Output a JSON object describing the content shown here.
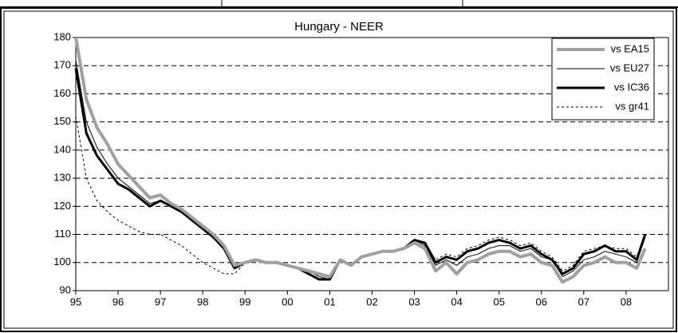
{
  "chart_data": {
    "type": "line",
    "title": "Hungary - NEER",
    "x": [
      1995,
      1995.25,
      1995.5,
      1995.75,
      1996,
      1996.25,
      1996.5,
      1996.75,
      1997,
      1997.25,
      1997.5,
      1997.75,
      1998,
      1998.25,
      1998.5,
      1998.75,
      1999,
      1999.25,
      1999.5,
      1999.75,
      2000,
      2000.25,
      2000.5,
      2000.75,
      2001,
      2001.25,
      2001.5,
      2001.75,
      2002,
      2002.25,
      2002.5,
      2002.75,
      2003,
      2003.25,
      2003.5,
      2003.75,
      2004,
      2004.25,
      2004.5,
      2004.75,
      2005,
      2005.25,
      2005.5,
      2005.75,
      2006,
      2006.25,
      2006.5,
      2006.75,
      2007,
      2007.25,
      2007.5,
      2007.75,
      2008,
      2008.25,
      2008.45
    ],
    "series": [
      {
        "name": "vs EA15",
        "color": "#a0a0a0",
        "width": 4,
        "dashed": false,
        "values": [
          180,
          158,
          148,
          142,
          135,
          131,
          127,
          123,
          124,
          121,
          119,
          116,
          113,
          110,
          106,
          99,
          100,
          101,
          100,
          100,
          99,
          98,
          97,
          96,
          95,
          101,
          99,
          102,
          103,
          104,
          104,
          105,
          107,
          105,
          97,
          100,
          96,
          100,
          101,
          103,
          104,
          104,
          102,
          103,
          100,
          99,
          93,
          95,
          99,
          100,
          102,
          100,
          100,
          98,
          105
        ]
      },
      {
        "name": "vs EU27",
        "color": "#000000",
        "width": 1,
        "dashed": false,
        "values": [
          172,
          150,
          141,
          135,
          130,
          127,
          124,
          121,
          122,
          120,
          118,
          115,
          112,
          109,
          105,
          99,
          100,
          101,
          100,
          100,
          99,
          98,
          97,
          95,
          94,
          101,
          99,
          102,
          103,
          104,
          104,
          105,
          108,
          106,
          99,
          101,
          99,
          102,
          103,
          105,
          106,
          106,
          104,
          105,
          102,
          101,
          95,
          97,
          101,
          102,
          104,
          103,
          102,
          100,
          109
        ]
      },
      {
        "name": "vs IC36",
        "color": "#000000",
        "width": 3,
        "dashed": false,
        "values": [
          169,
          146,
          138,
          133,
          128,
          126,
          123,
          120,
          122,
          120,
          118,
          115,
          112,
          109,
          105,
          98,
          100,
          101,
          100,
          100,
          99,
          98,
          96,
          94,
          94,
          101,
          99,
          102,
          103,
          104,
          104,
          105,
          108,
          107,
          100,
          102,
          101,
          104,
          105,
          107,
          108,
          107,
          105,
          106,
          103,
          101,
          96,
          98,
          103,
          104,
          106,
          104,
          104,
          101,
          110
        ]
      },
      {
        "name": "vs gr41",
        "color": "#000000",
        "width": 1,
        "dashed": true,
        "values": [
          152,
          130,
          122,
          118,
          115,
          113,
          111,
          110,
          110,
          108,
          106,
          103,
          100,
          98,
          96,
          96,
          100,
          101,
          100,
          100,
          99,
          98,
          96,
          94,
          94,
          101,
          99,
          102,
          103,
          104,
          104,
          105,
          108,
          107,
          101,
          103,
          102,
          105,
          106,
          108,
          109,
          108,
          106,
          107,
          104,
          102,
          97,
          99,
          104,
          105,
          106,
          105,
          105,
          102,
          110
        ]
      }
    ],
    "xlim": [
      1995,
      2009
    ],
    "xticks": [
      {
        "value": 1995,
        "label": "95"
      },
      {
        "value": 1996,
        "label": "96"
      },
      {
        "value": 1997,
        "label": "97"
      },
      {
        "value": 1998,
        "label": "98"
      },
      {
        "value": 1999,
        "label": "99"
      },
      {
        "value": 2000,
        "label": "00"
      },
      {
        "value": 2001,
        "label": "01"
      },
      {
        "value": 2002,
        "label": "02"
      },
      {
        "value": 2003,
        "label": "03"
      },
      {
        "value": 2004,
        "label": "04"
      },
      {
        "value": 2005,
        "label": "05"
      },
      {
        "value": 2006,
        "label": "06"
      },
      {
        "value": 2007,
        "label": "07"
      },
      {
        "value": 2008,
        "label": "08"
      }
    ],
    "ylim": [
      90,
      180
    ],
    "yticks": [
      90,
      100,
      110,
      120,
      130,
      140,
      150,
      160,
      170,
      180
    ],
    "grid": true,
    "legend": "top-right"
  }
}
